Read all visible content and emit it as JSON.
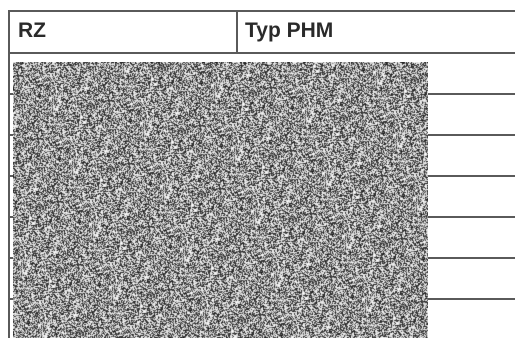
{
  "table": {
    "headers": [
      "RZ",
      "Typ PHM"
    ]
  },
  "redaction": {
    "kind": "noise-pattern"
  }
}
